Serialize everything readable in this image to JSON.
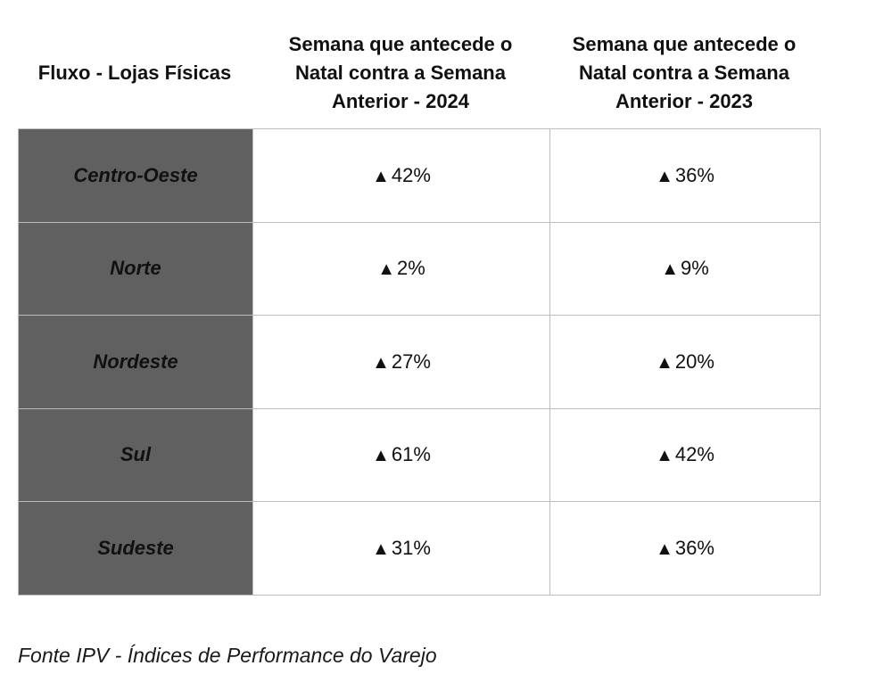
{
  "table": {
    "header": {
      "label": "Fluxo - Lojas Físicas",
      "col_2024": "Semana que antecede o\nNatal contra a Semana\nAnterior - 2024",
      "col_2023": "Semana que antecede o\nNatal contra a Semana\nAnterior - 2023"
    },
    "arrow_symbol": "▲",
    "rows": [
      {
        "region": "Centro-Oeste",
        "v2024": "42%",
        "v2023": "36%"
      },
      {
        "region": "Norte",
        "v2024": "2%",
        "v2023": "9%"
      },
      {
        "region": "Nordeste",
        "v2024": "27%",
        "v2023": "20%"
      },
      {
        "region": "Sul",
        "v2024": "61%",
        "v2023": "42%"
      },
      {
        "region": "Sudeste",
        "v2024": "31%",
        "v2023": "36%"
      }
    ]
  },
  "source": "Fonte IPV - Índices de Performance do Varejo",
  "colors": {
    "region_cell_bg": "#606060",
    "border": "#bdbdbd"
  }
}
